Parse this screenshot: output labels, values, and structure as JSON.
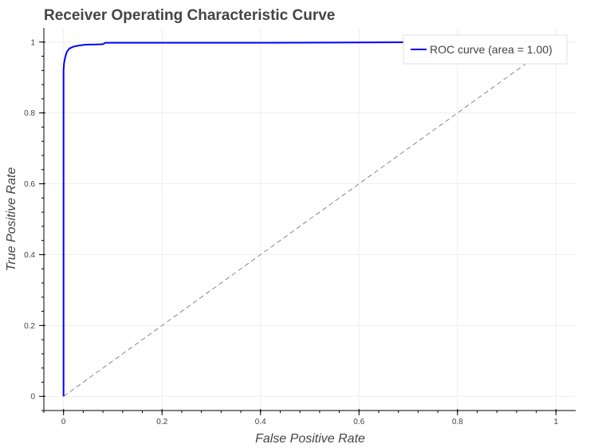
{
  "chart_data": {
    "type": "line",
    "title": "Receiver Operating Characteristic Curve",
    "xlabel": "False Positive Rate",
    "ylabel": "True Positive Rate",
    "xlim": [
      -0.04,
      1.04
    ],
    "ylim": [
      -0.04,
      1.04
    ],
    "x_ticks": [
      0,
      0.2,
      0.4,
      0.6,
      0.8,
      1
    ],
    "x_tick_labels": [
      "0",
      "0.2",
      "0.4",
      "0.6",
      "0.8",
      "1"
    ],
    "y_ticks": [
      0,
      0.2,
      0.4,
      0.6,
      0.8,
      1
    ],
    "y_tick_labels": [
      "0",
      "0.2",
      "0.4",
      "0.6",
      "0.8",
      "1"
    ],
    "grid": true,
    "legend_position": "top-right",
    "series": [
      {
        "name": "ROC curve (area = 1.00)",
        "color": "#0000ff",
        "style": "solid",
        "x": [
          0,
          0,
          0.001,
          0.003,
          0.004,
          0.006,
          0.008,
          0.012,
          0.02,
          0.03,
          0.04,
          0.05,
          0.06,
          0.08,
          0.085,
          0.09,
          0.2,
          0.4,
          0.6,
          0.8,
          1
        ],
        "y": [
          0,
          0.92,
          0.94,
          0.955,
          0.96,
          0.97,
          0.975,
          0.982,
          0.987,
          0.99,
          0.992,
          0.993,
          0.993,
          0.994,
          0.998,
          0.998,
          0.998,
          0.998,
          0.999,
          1,
          1
        ]
      },
      {
        "name": "",
        "color": "#888888",
        "style": "dashed",
        "x": [
          0,
          1
        ],
        "y": [
          0,
          1
        ]
      }
    ]
  }
}
